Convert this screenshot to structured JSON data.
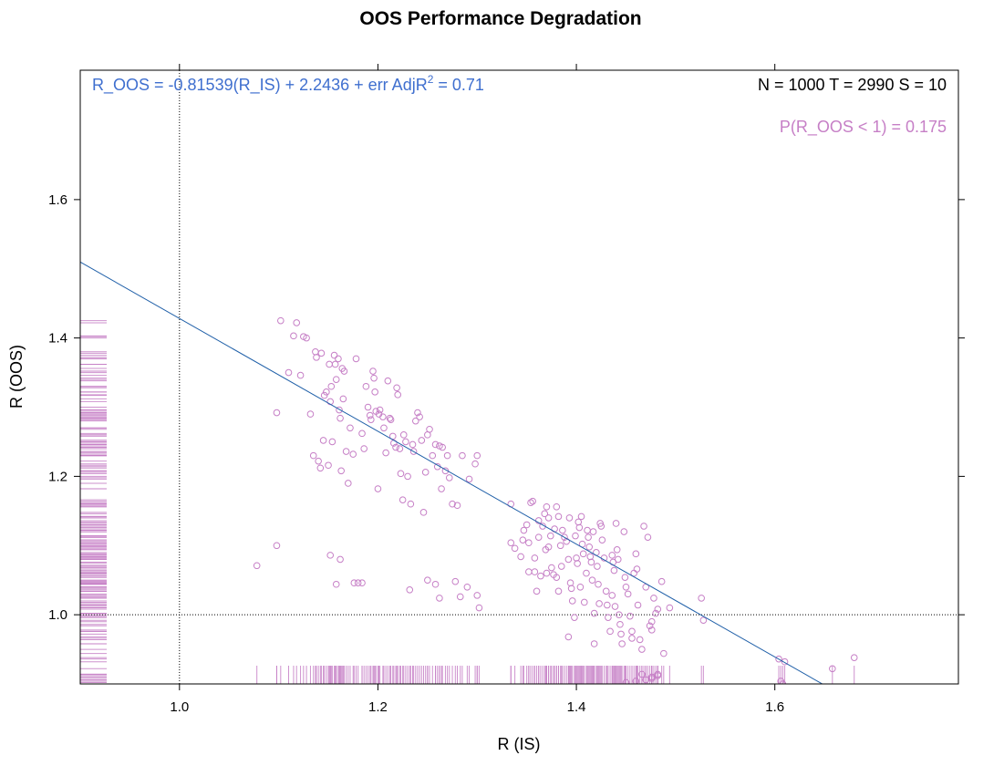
{
  "chart_data": {
    "type": "scatter",
    "title": "OOS Performance Degradation",
    "xlabel": "R (IS)",
    "ylabel": "R (OOS)",
    "xlim": [
      0.9,
      1.785
    ],
    "ylim": [
      0.9,
      1.787
    ],
    "x_ticks": [
      1.0,
      1.2,
      1.4,
      1.6
    ],
    "x_tick_labels": [
      "1.0",
      "1.2",
      "1.4",
      "1.6"
    ],
    "y_ticks": [
      1.0,
      1.2,
      1.4,
      1.6
    ],
    "y_tick_labels": [
      "1.0",
      "1.2",
      "1.4",
      "1.6"
    ],
    "grid": false,
    "reference_lines": {
      "x": 1.0,
      "y": 1.0
    },
    "regression": {
      "slope": -0.81539,
      "intercept": 2.2436
    },
    "annotations": {
      "equation_left": "R_OOS = -0.81539(R_IS) + 2.2436 + err  AdjR",
      "equation_sup": "2",
      "equation_right": " = 0.71",
      "stats": "N = 1000  T = 2990  S = 10",
      "probability": "P(R_OOS < 1) = 0.175"
    },
    "colors": {
      "points": "#c67fc6",
      "regression": "#1f5fa8",
      "equation": "#3f6fcf",
      "probability": "#c67fc6",
      "reference": "#000000"
    },
    "rug": {
      "x": true,
      "y": true
    },
    "points": [
      [
        1.078,
        1.071
      ],
      [
        1.098,
        1.1
      ],
      [
        1.098,
        1.292
      ],
      [
        1.102,
        1.425
      ],
      [
        1.11,
        1.35
      ],
      [
        1.115,
        1.403
      ],
      [
        1.118,
        1.422
      ],
      [
        1.122,
        1.346
      ],
      [
        1.125,
        1.402
      ],
      [
        1.128,
        1.4
      ],
      [
        1.132,
        1.29
      ],
      [
        1.135,
        1.23
      ],
      [
        1.137,
        1.38
      ],
      [
        1.138,
        1.372
      ],
      [
        1.14,
        1.222
      ],
      [
        1.142,
        1.212
      ],
      [
        1.143,
        1.378
      ],
      [
        1.145,
        1.252
      ],
      [
        1.146,
        1.317
      ],
      [
        1.148,
        1.322
      ],
      [
        1.15,
        1.216
      ],
      [
        1.151,
        1.362
      ],
      [
        1.152,
        1.308
      ],
      [
        1.153,
        1.33
      ],
      [
        1.154,
        1.25
      ],
      [
        1.156,
        1.375
      ],
      [
        1.157,
        1.362
      ],
      [
        1.158,
        1.34
      ],
      [
        1.16,
        1.37
      ],
      [
        1.161,
        1.296
      ],
      [
        1.162,
        1.284
      ],
      [
        1.163,
        1.208
      ],
      [
        1.164,
        1.356
      ],
      [
        1.165,
        1.312
      ],
      [
        1.166,
        1.352
      ],
      [
        1.168,
        1.236
      ],
      [
        1.17,
        1.19
      ],
      [
        1.172,
        1.27
      ],
      [
        1.175,
        1.232
      ],
      [
        1.178,
        1.37
      ],
      [
        1.18,
        1.046
      ],
      [
        1.184,
        1.262
      ],
      [
        1.186,
        1.24
      ],
      [
        1.188,
        1.33
      ],
      [
        1.19,
        1.3
      ],
      [
        1.192,
        1.288
      ],
      [
        1.193,
        1.282
      ],
      [
        1.195,
        1.352
      ],
      [
        1.196,
        1.342
      ],
      [
        1.197,
        1.322
      ],
      [
        1.198,
        1.294
      ],
      [
        1.2,
        1.182
      ],
      [
        1.201,
        1.29
      ],
      [
        1.202,
        1.296
      ],
      [
        1.205,
        1.286
      ],
      [
        1.206,
        1.27
      ],
      [
        1.208,
        1.234
      ],
      [
        1.21,
        1.338
      ],
      [
        1.212,
        1.284
      ],
      [
        1.213,
        1.282
      ],
      [
        1.215,
        1.258
      ],
      [
        1.216,
        1.248
      ],
      [
        1.218,
        1.242
      ],
      [
        1.219,
        1.328
      ],
      [
        1.22,
        1.318
      ],
      [
        1.222,
        1.24
      ],
      [
        1.223,
        1.204
      ],
      [
        1.225,
        1.166
      ],
      [
        1.226,
        1.26
      ],
      [
        1.228,
        1.25
      ],
      [
        1.23,
        1.2
      ],
      [
        1.232,
        1.036
      ],
      [
        1.233,
        1.16
      ],
      [
        1.235,
        1.246
      ],
      [
        1.236,
        1.236
      ],
      [
        1.238,
        1.28
      ],
      [
        1.24,
        1.292
      ],
      [
        1.242,
        1.286
      ],
      [
        1.244,
        1.252
      ],
      [
        1.246,
        1.148
      ],
      [
        1.248,
        1.206
      ],
      [
        1.25,
        1.26
      ],
      [
        1.252,
        1.268
      ],
      [
        1.255,
        1.23
      ],
      [
        1.258,
        1.246
      ],
      [
        1.26,
        1.214
      ],
      [
        1.262,
        1.244
      ],
      [
        1.264,
        1.182
      ],
      [
        1.265,
        1.242
      ],
      [
        1.268,
        1.208
      ],
      [
        1.27,
        1.23
      ],
      [
        1.272,
        1.198
      ],
      [
        1.275,
        1.16
      ],
      [
        1.278,
        1.048
      ],
      [
        1.28,
        1.158
      ],
      [
        1.283,
        1.026
      ],
      [
        1.285,
        1.23
      ],
      [
        1.29,
        1.04
      ],
      [
        1.292,
        1.196
      ],
      [
        1.298,
        1.218
      ],
      [
        1.152,
        1.086
      ],
      [
        1.158,
        1.044
      ],
      [
        1.162,
        1.08
      ],
      [
        1.176,
        1.046
      ],
      [
        1.184,
        1.046
      ],
      [
        1.25,
        1.05
      ],
      [
        1.262,
        1.024
      ],
      [
        1.258,
        1.044
      ],
      [
        1.302,
        1.01
      ],
      [
        1.3,
        1.028
      ],
      [
        1.334,
        1.16
      ],
      [
        1.338,
        1.096
      ],
      [
        1.344,
        1.084
      ],
      [
        1.347,
        1.122
      ],
      [
        1.35,
        1.13
      ],
      [
        1.352,
        1.104
      ],
      [
        1.354,
        1.162
      ],
      [
        1.356,
        1.164
      ],
      [
        1.358,
        1.062
      ],
      [
        1.36,
        1.034
      ],
      [
        1.362,
        1.112
      ],
      [
        1.364,
        1.056
      ],
      [
        1.366,
        1.128
      ],
      [
        1.368,
        1.146
      ],
      [
        1.369,
        1.094
      ],
      [
        1.37,
        1.156
      ],
      [
        1.372,
        1.14
      ],
      [
        1.374,
        1.114
      ],
      [
        1.375,
        1.068
      ],
      [
        1.377,
        1.058
      ],
      [
        1.378,
        1.124
      ],
      [
        1.38,
        1.156
      ],
      [
        1.382,
        1.142
      ],
      [
        1.384,
        1.1
      ],
      [
        1.385,
        1.07
      ],
      [
        1.386,
        1.122
      ],
      [
        1.388,
        1.112
      ],
      [
        1.39,
        1.106
      ],
      [
        1.392,
        1.08
      ],
      [
        1.393,
        1.14
      ],
      [
        1.394,
        1.046
      ],
      [
        1.395,
        1.038
      ],
      [
        1.396,
        1.02
      ],
      [
        1.398,
        0.996
      ],
      [
        1.399,
        1.114
      ],
      [
        1.4,
        1.082
      ],
      [
        1.401,
        1.074
      ],
      [
        1.402,
        1.134
      ],
      [
        1.403,
        1.126
      ],
      [
        1.404,
        1.04
      ],
      [
        1.405,
        1.142
      ],
      [
        1.406,
        1.102
      ],
      [
        1.407,
        1.088
      ],
      [
        1.408,
        1.018
      ],
      [
        1.41,
        1.06
      ],
      [
        1.411,
        1.122
      ],
      [
        1.412,
        1.112
      ],
      [
        1.413,
        1.098
      ],
      [
        1.414,
        1.084
      ],
      [
        1.415,
        1.076
      ],
      [
        1.416,
        1.05
      ],
      [
        1.417,
        1.12
      ],
      [
        1.418,
        1.002
      ],
      [
        1.42,
        1.09
      ],
      [
        1.421,
        1.07
      ],
      [
        1.422,
        1.044
      ],
      [
        1.423,
        1.016
      ],
      [
        1.424,
        1.132
      ],
      [
        1.425,
        1.128
      ],
      [
        1.426,
        1.108
      ],
      [
        1.428,
        1.082
      ],
      [
        1.43,
        1.034
      ],
      [
        1.431,
        1.014
      ],
      [
        1.432,
        0.996
      ],
      [
        1.434,
        0.976
      ],
      [
        1.436,
        1.086
      ],
      [
        1.437,
        1.076
      ],
      [
        1.438,
        1.064
      ],
      [
        1.439,
        1.012
      ],
      [
        1.44,
        1.132
      ],
      [
        1.441,
        1.094
      ],
      [
        1.442,
        1.08
      ],
      [
        1.443,
        1.0
      ],
      [
        1.444,
        0.986
      ],
      [
        1.445,
        0.972
      ],
      [
        1.446,
        0.958
      ],
      [
        1.448,
        1.12
      ],
      [
        1.449,
        1.054
      ],
      [
        1.45,
        1.04
      ],
      [
        1.452,
        1.03
      ],
      [
        1.454,
        0.998
      ],
      [
        1.456,
        0.976
      ],
      [
        1.458,
        1.06
      ],
      [
        1.46,
        1.088
      ],
      [
        1.461,
        1.066
      ],
      [
        1.462,
        1.014
      ],
      [
        1.464,
        0.964
      ],
      [
        1.466,
        0.95
      ],
      [
        1.468,
        1.128
      ],
      [
        1.47,
        1.04
      ],
      [
        1.472,
        1.112
      ],
      [
        1.474,
        0.984
      ],
      [
        1.476,
        0.978
      ],
      [
        1.478,
        1.024
      ],
      [
        1.48,
        1.002
      ],
      [
        1.482,
        1.008
      ],
      [
        1.486,
        1.048
      ],
      [
        1.488,
        0.944
      ],
      [
        1.494,
        1.01
      ],
      [
        1.352,
        1.062
      ],
      [
        1.382,
        1.034
      ],
      [
        1.392,
        0.968
      ],
      [
        1.418,
        0.958
      ],
      [
        1.436,
        1.028
      ],
      [
        1.456,
        0.966
      ],
      [
        1.476,
        0.99
      ],
      [
        1.526,
        1.024
      ],
      [
        1.528,
        0.992
      ],
      [
        1.604,
        0.936
      ],
      [
        1.61,
        0.932
      ],
      [
        1.606,
        0.904
      ],
      [
        1.608,
        0.9
      ],
      [
        1.658,
        0.922
      ],
      [
        1.68,
        0.938
      ],
      [
        1.45,
        0.902
      ],
      [
        1.46,
        0.904
      ],
      [
        1.47,
        0.906
      ],
      [
        1.476,
        0.91
      ],
      [
        1.482,
        0.912
      ],
      [
        1.466,
        0.914
      ],
      [
        1.482,
        0.914
      ],
      [
        1.476,
        0.908
      ],
      [
        1.3,
        1.23
      ],
      [
        1.334,
        1.104
      ],
      [
        1.346,
        1.108
      ],
      [
        1.358,
        1.082
      ],
      [
        1.37,
        1.06
      ],
      [
        1.38,
        1.054
      ],
      [
        1.362,
        1.136
      ],
      [
        1.372,
        1.098
      ]
    ]
  }
}
